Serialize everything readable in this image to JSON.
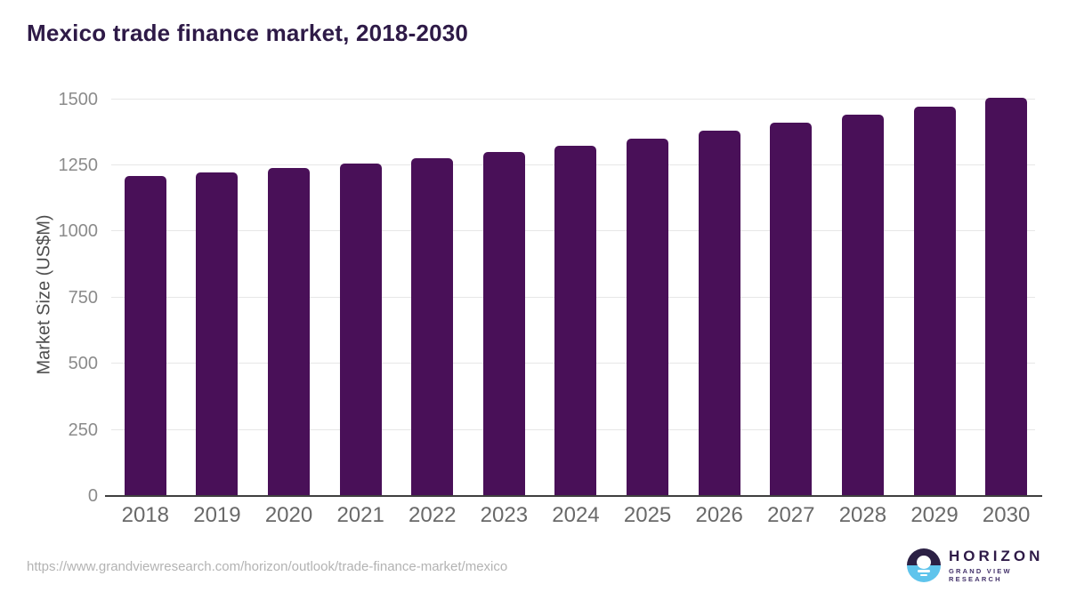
{
  "page": {
    "title": "Mexico trade finance market, 2018-2030"
  },
  "chart_data": {
    "type": "bar",
    "title": "Mexico trade finance market, 2018-2030",
    "categories": [
      "2018",
      "2019",
      "2020",
      "2021",
      "2022",
      "2023",
      "2024",
      "2025",
      "2026",
      "2027",
      "2028",
      "2029",
      "2030"
    ],
    "values": [
      1210,
      1223,
      1239,
      1258,
      1277,
      1300,
      1324,
      1352,
      1381,
      1411,
      1441,
      1472,
      1505
    ],
    "xlabel": "",
    "ylabel": "Market Size (US$M)",
    "ylim": [
      0,
      1500
    ],
    "y_ticks": [
      0,
      250,
      500,
      750,
      1000,
      1250,
      1500
    ],
    "grid": "horizontal",
    "legend": "none",
    "bar_color": "#491058"
  },
  "footer": {
    "source_url": "https://www.grandviewresearch.com/horizon/outlook/trade-finance-market/mexico",
    "logo": {
      "name": "HORIZON",
      "subtitle": "GRAND VIEW RESEARCH",
      "icon": "sunset-circle-icon",
      "dark_color": "#2b2044",
      "blue_color": "#5fc4ec"
    }
  },
  "colors": {
    "title_text": "#2e1a47",
    "bar": "#491058",
    "gridline": "#e7e7e7",
    "axis_line": "#3f3f3f",
    "y_tick_text": "#8b8b8b",
    "x_tick_text": "#696969",
    "url_text": "#b3b3b3",
    "background": "#ffffff"
  }
}
